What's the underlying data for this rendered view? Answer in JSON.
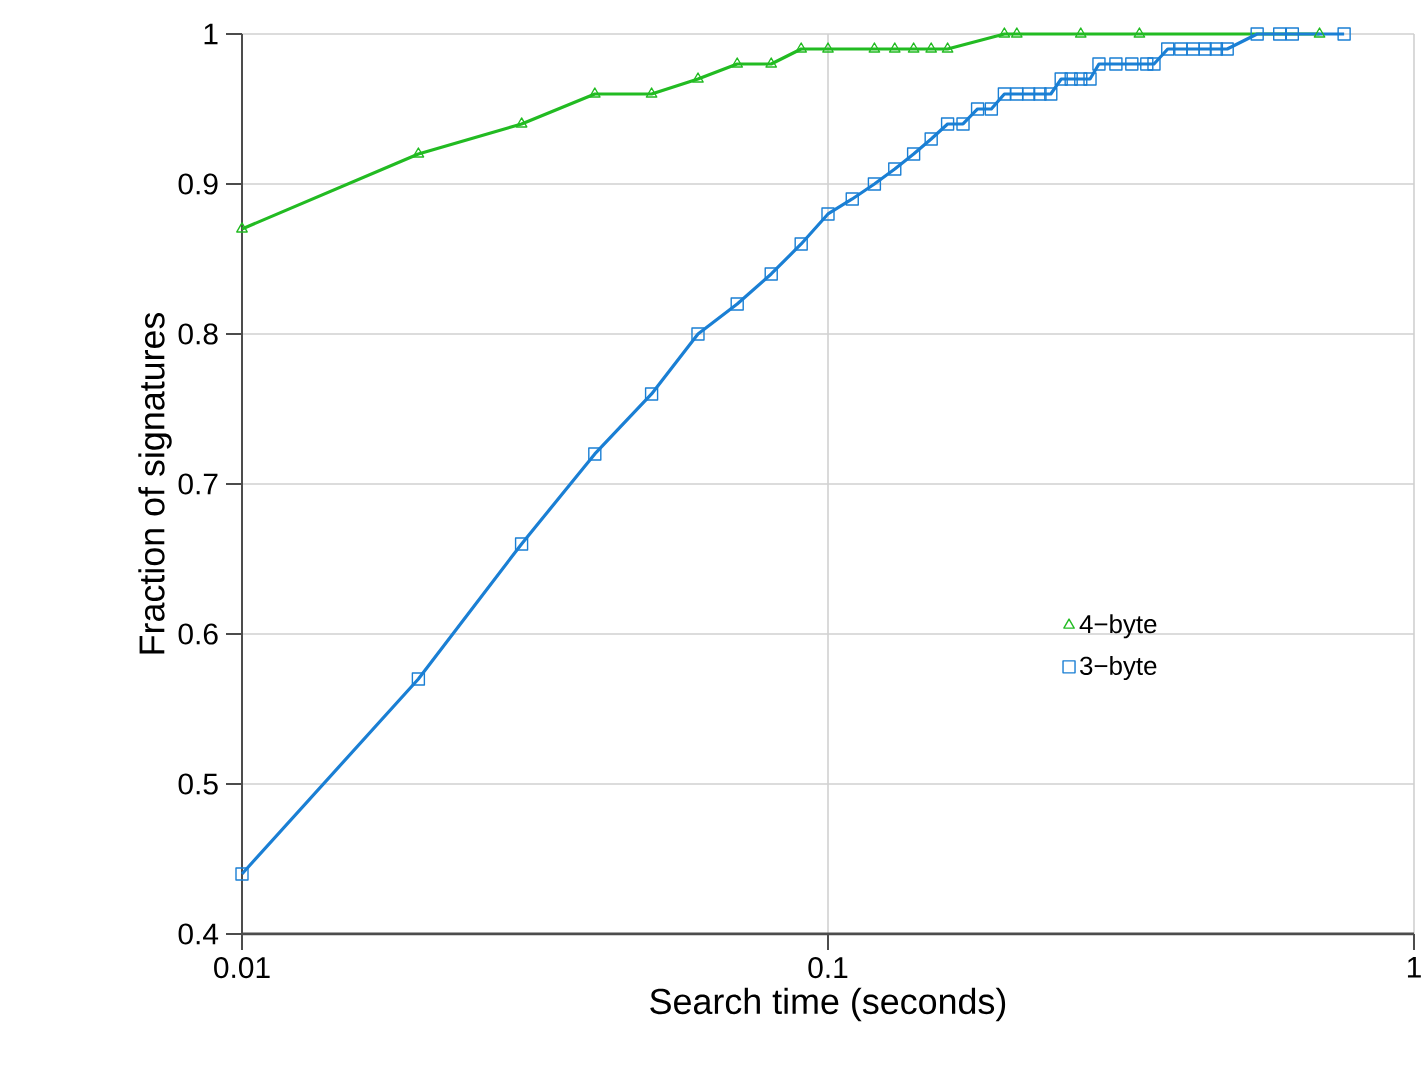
{
  "chart_data": {
    "type": "line",
    "xlabel": "Search time (seconds)",
    "ylabel": "Fraction of signatures",
    "log": "x",
    "xlim": [
      0.01,
      1
    ],
    "xticks": [
      0.01,
      0.1,
      1
    ],
    "ylim": [
      0.4,
      1
    ],
    "yticks": [
      0.4,
      0.5,
      0.6,
      0.7,
      0.8,
      0.9,
      1
    ],
    "grid": true,
    "legend": "right",
    "line_style": "solid",
    "series": [
      {
        "name": "4−byte",
        "color": "#22bb22",
        "marker": "triangle",
        "x": [
          0.01,
          0.02,
          0.03,
          0.04,
          0.05,
          0.06,
          0.07,
          0.08,
          0.09,
          0.1,
          0.12,
          0.13,
          0.14,
          0.15,
          0.16,
          0.2,
          0.21,
          0.27,
          0.34,
          0.69
        ],
        "values": [
          0.87,
          0.92,
          0.94,
          0.96,
          0.96,
          0.97,
          0.98,
          0.98,
          0.99,
          0.99,
          0.99,
          0.99,
          0.99,
          0.99,
          0.99,
          1.0,
          1.0,
          1.0,
          1.0,
          1.0
        ]
      },
      {
        "name": "3−byte",
        "color": "#1a7fd4",
        "marker": "square",
        "x": [
          0.01,
          0.02,
          0.03,
          0.04,
          0.05,
          0.06,
          0.07,
          0.08,
          0.09,
          0.1,
          0.11,
          0.12,
          0.13,
          0.14,
          0.15,
          0.16,
          0.17,
          0.18,
          0.19,
          0.2,
          0.21,
          0.22,
          0.23,
          0.24,
          0.25,
          0.26,
          0.27,
          0.28,
          0.29,
          0.31,
          0.33,
          0.35,
          0.36,
          0.38,
          0.4,
          0.42,
          0.44,
          0.46,
          0.48,
          0.54,
          0.59,
          0.62,
          0.76
        ],
        "values": [
          0.44,
          0.57,
          0.66,
          0.72,
          0.76,
          0.8,
          0.82,
          0.84,
          0.86,
          0.88,
          0.89,
          0.9,
          0.91,
          0.92,
          0.93,
          0.94,
          0.94,
          0.95,
          0.95,
          0.96,
          0.96,
          0.96,
          0.96,
          0.96,
          0.97,
          0.97,
          0.97,
          0.97,
          0.98,
          0.98,
          0.98,
          0.98,
          0.98,
          0.99,
          0.99,
          0.99,
          0.99,
          0.99,
          0.99,
          1.0,
          1.0,
          1.0,
          1.0
        ]
      }
    ]
  }
}
